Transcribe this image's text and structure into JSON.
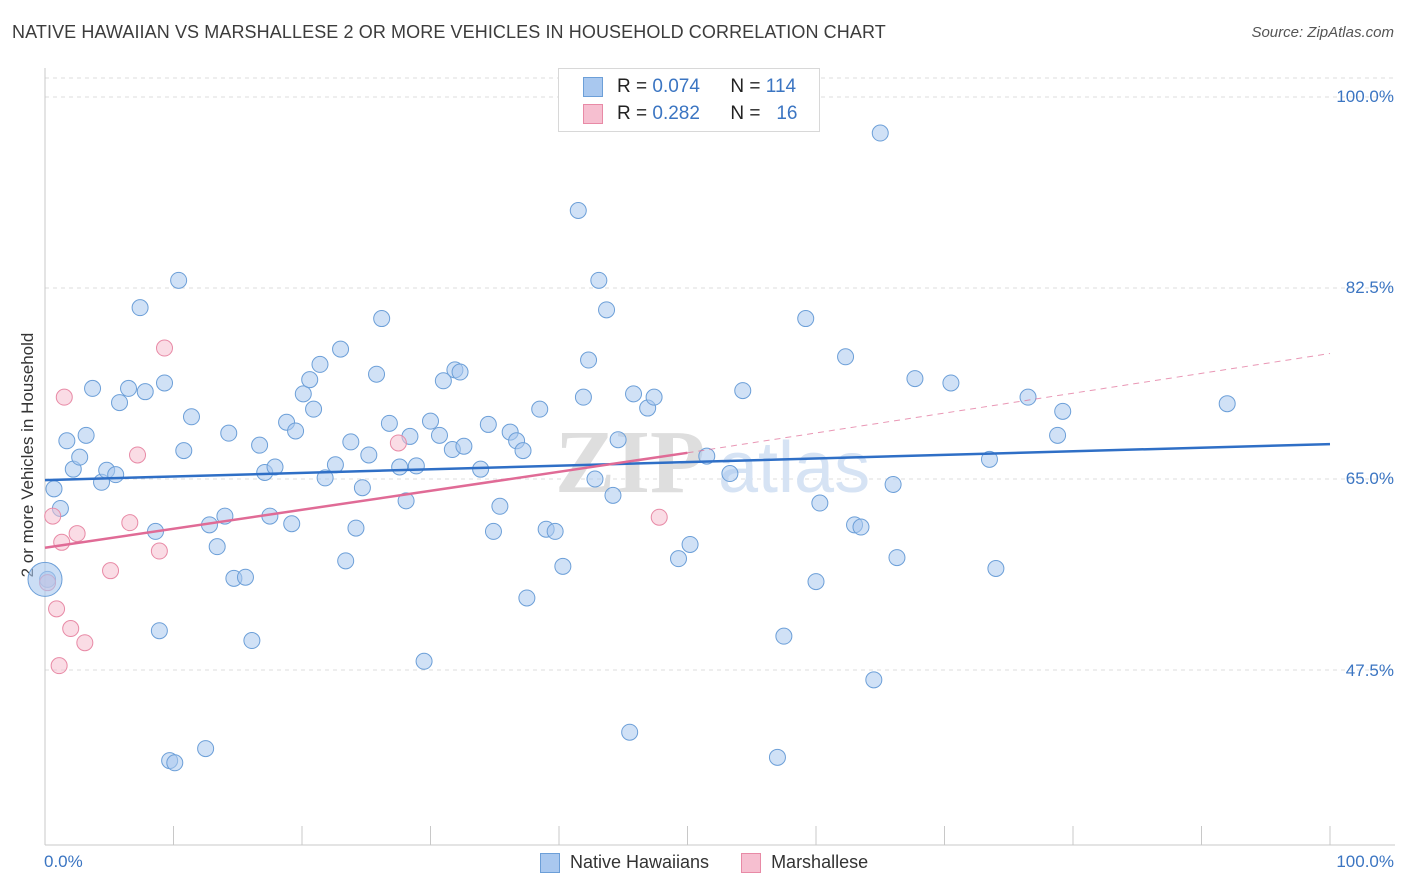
{
  "title": "NATIVE HAWAIIAN VS MARSHALLESE 2 OR MORE VEHICLES IN HOUSEHOLD CORRELATION CHART",
  "source": "Source: ZipAtlas.com",
  "legend_box": {
    "rows": [
      {
        "r_label": "R =",
        "r_value": "0.074",
        "n_label": "N =",
        "n_value": "114"
      },
      {
        "r_label": "R =",
        "r_value": "0.282",
        "n_label": "N =",
        "n_value": "16"
      }
    ]
  },
  "colors": {
    "blue_fill": "#a9c8ef",
    "blue_stroke": "#6c9fd8",
    "blue_line": "#2f6fc6",
    "pink_fill": "#f6bfd0",
    "pink_stroke": "#e88aa6",
    "pink_line": "#e06b96",
    "grid": "#dcdcdc",
    "tick_text": "#3b75c2"
  },
  "watermark": {
    "zip": "ZIP",
    "atlas": "atlas"
  },
  "chart_data": {
    "type": "scatter",
    "xlabel": "",
    "ylabel": "2 or more Vehicles in Household",
    "xlim": [
      0,
      100
    ],
    "ylim": [
      35,
      105
    ],
    "x_tick_labels": [
      "0.0%",
      "100.0%"
    ],
    "y_ticks": [
      47.5,
      65.0,
      82.5,
      100.0
    ],
    "y_tick_labels": [
      "47.5%",
      "65.0%",
      "82.5%",
      "100.0%"
    ],
    "grid": true,
    "legend_position": "top-center",
    "series": [
      {
        "name": "Native Hawaiians",
        "trend": {
          "x0": 0,
          "y0": 64.9,
          "x1": 100,
          "y1": 68.2
        },
        "points": [
          [
            0.2,
            55.8
          ],
          [
            0.7,
            64.1
          ],
          [
            1.2,
            62.3
          ],
          [
            1.7,
            68.5
          ],
          [
            2.2,
            65.9
          ],
          [
            2.7,
            67.0
          ],
          [
            3.2,
            69.0
          ],
          [
            3.7,
            73.3
          ],
          [
            4.4,
            64.7
          ],
          [
            4.8,
            65.8
          ],
          [
            5.5,
            65.4
          ],
          [
            5.8,
            72.0
          ],
          [
            6.5,
            73.3
          ],
          [
            7.4,
            80.7
          ],
          [
            7.8,
            73.0
          ],
          [
            8.6,
            60.2
          ],
          [
            8.9,
            51.1
          ],
          [
            9.3,
            73.8
          ],
          [
            9.7,
            39.2
          ],
          [
            10.1,
            39.0
          ],
          [
            10.4,
            83.2
          ],
          [
            10.8,
            67.6
          ],
          [
            11.4,
            70.7
          ],
          [
            12.5,
            40.3
          ],
          [
            12.8,
            60.8
          ],
          [
            13.4,
            58.8
          ],
          [
            14.0,
            61.6
          ],
          [
            14.3,
            69.2
          ],
          [
            14.7,
            55.9
          ],
          [
            15.6,
            56.0
          ],
          [
            16.1,
            50.2
          ],
          [
            16.7,
            68.1
          ],
          [
            17.1,
            65.6
          ],
          [
            17.5,
            61.6
          ],
          [
            17.9,
            66.1
          ],
          [
            18.8,
            70.2
          ],
          [
            19.2,
            60.9
          ],
          [
            19.5,
            69.4
          ],
          [
            20.1,
            72.8
          ],
          [
            20.6,
            74.1
          ],
          [
            20.9,
            71.4
          ],
          [
            21.4,
            75.5
          ],
          [
            21.8,
            65.1
          ],
          [
            22.6,
            66.3
          ],
          [
            23.0,
            76.9
          ],
          [
            23.4,
            57.5
          ],
          [
            23.8,
            68.4
          ],
          [
            24.2,
            60.5
          ],
          [
            24.7,
            64.2
          ],
          [
            25.2,
            67.2
          ],
          [
            25.8,
            74.6
          ],
          [
            26.2,
            79.7
          ],
          [
            26.8,
            70.1
          ],
          [
            27.6,
            66.1
          ],
          [
            28.1,
            63.0
          ],
          [
            28.4,
            68.9
          ],
          [
            28.9,
            66.2
          ],
          [
            29.5,
            48.3
          ],
          [
            30.0,
            70.3
          ],
          [
            30.7,
            69.0
          ],
          [
            31.0,
            74.0
          ],
          [
            31.7,
            67.7
          ],
          [
            31.9,
            75.0
          ],
          [
            32.3,
            74.8
          ],
          [
            32.6,
            68.0
          ],
          [
            33.9,
            65.9
          ],
          [
            34.5,
            70.0
          ],
          [
            34.9,
            60.2
          ],
          [
            35.4,
            62.5
          ],
          [
            36.2,
            69.3
          ],
          [
            36.7,
            68.5
          ],
          [
            37.2,
            67.6
          ],
          [
            37.5,
            54.1
          ],
          [
            38.5,
            71.4
          ],
          [
            39.0,
            60.4
          ],
          [
            39.7,
            60.2
          ],
          [
            40.3,
            57.0
          ],
          [
            41.5,
            89.6
          ],
          [
            41.9,
            72.5
          ],
          [
            42.3,
            75.9
          ],
          [
            42.8,
            65.0
          ],
          [
            43.1,
            83.2
          ],
          [
            43.7,
            80.5
          ],
          [
            44.2,
            63.5
          ],
          [
            44.6,
            68.6
          ],
          [
            45.5,
            41.8
          ],
          [
            45.8,
            72.8
          ],
          [
            46.9,
            71.5
          ],
          [
            47.4,
            72.5
          ],
          [
            49.3,
            57.7
          ],
          [
            50.2,
            59.0
          ],
          [
            51.5,
            67.1
          ],
          [
            53.3,
            65.5
          ],
          [
            54.3,
            73.1
          ],
          [
            57.0,
            39.5
          ],
          [
            57.5,
            50.6
          ],
          [
            59.2,
            79.7
          ],
          [
            60.0,
            55.6
          ],
          [
            60.3,
            62.8
          ],
          [
            62.3,
            76.2
          ],
          [
            63.0,
            60.8
          ],
          [
            63.5,
            60.6
          ],
          [
            64.5,
            46.6
          ],
          [
            65.0,
            96.7
          ],
          [
            66.3,
            57.8
          ],
          [
            67.7,
            74.2
          ],
          [
            70.5,
            73.8
          ],
          [
            73.5,
            66.8
          ],
          [
            74.0,
            56.8
          ],
          [
            76.5,
            72.5
          ],
          [
            78.8,
            69.0
          ],
          [
            79.2,
            71.2
          ],
          [
            92.0,
            71.9
          ],
          [
            66.0,
            64.5
          ]
        ]
      },
      {
        "name": "Marshallese",
        "trend": {
          "x0": 0,
          "y0": 58.7,
          "x1": 50,
          "y1": 67.4,
          "x_dash_end": 100,
          "y_dash_end": 76.5
        },
        "points": [
          [
            0.2,
            55.5
          ],
          [
            0.6,
            61.6
          ],
          [
            0.9,
            53.1
          ],
          [
            1.1,
            47.9
          ],
          [
            1.3,
            59.2
          ],
          [
            1.5,
            72.5
          ],
          [
            2.0,
            51.3
          ],
          [
            2.5,
            60.0
          ],
          [
            3.1,
            50.0
          ],
          [
            5.1,
            56.6
          ],
          [
            6.6,
            61.0
          ],
          [
            7.2,
            67.2
          ],
          [
            8.9,
            58.4
          ],
          [
            9.3,
            77.0
          ],
          [
            27.5,
            68.3
          ],
          [
            47.8,
            61.5
          ]
        ]
      }
    ]
  },
  "bottom_legend": {
    "items": [
      "Native Hawaiians",
      "Marshallese"
    ]
  }
}
